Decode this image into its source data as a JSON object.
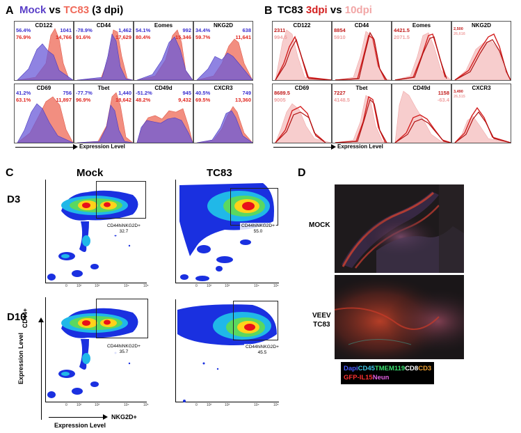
{
  "panelA": {
    "letter": "A",
    "title_mock": "Mock",
    "title_vs": " vs ",
    "title_tc83": "TC83",
    "title_dpi": " (3 dpi)",
    "axis_label": "Expression Level",
    "histograms": [
      {
        "name": "CD122",
        "tl1": "56.4%",
        "tl2": "76.9%",
        "tr1": "1041",
        "tr2": "14,766"
      },
      {
        "name": "CD44",
        "tl1": "-78.9%",
        "tl2": "91.6%",
        "tr1": "1,462",
        "tr2": "17,629"
      },
      {
        "name": "Eomes",
        "tl1": "54.1%",
        "tl2": "80.4%",
        "tr1": "992",
        "tr2": "15,346"
      },
      {
        "name": "NKG2D",
        "tl1": "34.4%",
        "tl2": "59.7%",
        "tr1": "638",
        "tr2": "11,641"
      },
      {
        "name": "CD69",
        "tl1": "41.2%",
        "tl2": "63.1%",
        "tr1": "756",
        "tr2": "11,897"
      },
      {
        "name": "Tbet",
        "tl1": "-77.7%",
        "tl2": "96.9%",
        "tr1": "1,440",
        "tr2": "18,642"
      },
      {
        "name": "CD49d",
        "tl1": "-51.2%",
        "tl2": "48.2%",
        "tr1": "945",
        "tr2": "9,432"
      },
      {
        "name": "CXCR3",
        "tl1": "40.5%",
        "tl2": "69.5%",
        "tr1": "749",
        "tr2": "13,360"
      }
    ]
  },
  "panelB": {
    "letter": "B",
    "title_tc83": "TC83 ",
    "title_3dpi": "3dpi",
    "title_vs": " vs ",
    "title_10dpi": "10dpi",
    "axis_label": "Expression Level",
    "histograms": [
      {
        "name": "CD122",
        "v1": "2311",
        "v2": "994.5"
      },
      {
        "name": "CD44",
        "v1": "8854",
        "v2": "5910"
      },
      {
        "name": "Eomes",
        "v1": "4421.5",
        "v2": "2071.5"
      },
      {
        "name": "NKG2D",
        "v1": "2,500",
        "v2": "26,616"
      },
      {
        "name": "CD69",
        "v1": "8689.5",
        "v2": "9005"
      },
      {
        "name": "Tbet",
        "v1": "7227",
        "v2": "4148.5"
      },
      {
        "name": "CD49d",
        "v1": "1158",
        "v2": "-63.4"
      },
      {
        "name": "CXCR3",
        "v1": "3,490",
        "v2": "26,515"
      }
    ]
  },
  "panelC": {
    "letter": "C",
    "col_mock": "Mock",
    "col_tc83": "TC83",
    "row_d3": "D3",
    "row_d10": "D10",
    "y_label": "Expression Level",
    "y_marker": "CD44+",
    "x_label": "Expression Level",
    "x_marker": "NKG2D+",
    "gate_name": "CD44hiNKG2D+",
    "gates": {
      "d3_mock": "32.7",
      "d3_tc83": "55.0",
      "d10_mock": "35.7",
      "d10_tc83": "45.5"
    },
    "ticks_x": [
      "0",
      "10²",
      "10³",
      "10⁴",
      "10⁵"
    ]
  },
  "panelD": {
    "letter": "D",
    "label_mock": "MOCK",
    "label_veev_1": "VEEV",
    "label_veev_2": "TC83",
    "legend": {
      "dapi": "Dapi",
      "cd45": "CD45",
      "tmem": "TMEM119",
      "cd8": "CD8",
      "cd3": "CD3",
      "gfp": "GFP-IL15",
      "neun": "Neun"
    }
  }
}
